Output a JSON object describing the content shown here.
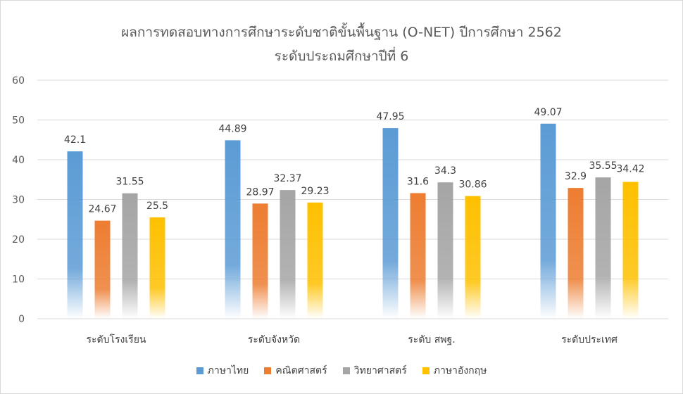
{
  "chart_data": {
    "type": "bar",
    "title": "ผลการทดสอบทางการศึกษาระดับชาติขั้นพื้นฐาน (O-NET) ปีการศึกษา 2562",
    "subtitle": "ระดับประถมศึกษาปีที่ 6",
    "categories": [
      "ระดับโรงเรียน",
      "ระดับจังหวัด",
      "ระดับ  สพฐ.",
      "ระดับประเทศ"
    ],
    "series": [
      {
        "name": "ภาษาไทย",
        "color": "#5b9bd5",
        "values": [
          42.1,
          44.89,
          47.95,
          49.07
        ]
      },
      {
        "name": "คณิตศาสตร์",
        "color": "#ed7d31",
        "values": [
          24.67,
          28.97,
          31.6,
          32.9
        ]
      },
      {
        "name": "วิทยาศาสตร์",
        "color": "#a5a5a5",
        "values": [
          31.55,
          32.37,
          34.3,
          35.55
        ]
      },
      {
        "name": "ภาษาอังกฤษ",
        "color": "#ffc000",
        "values": [
          25.5,
          29.23,
          30.86,
          34.42
        ]
      }
    ],
    "yticks": [
      "0",
      "10",
      "20",
      "30",
      "40",
      "50",
      "60"
    ],
    "ylim": [
      0,
      60
    ],
    "grid": true,
    "legend_position": "bottom"
  }
}
